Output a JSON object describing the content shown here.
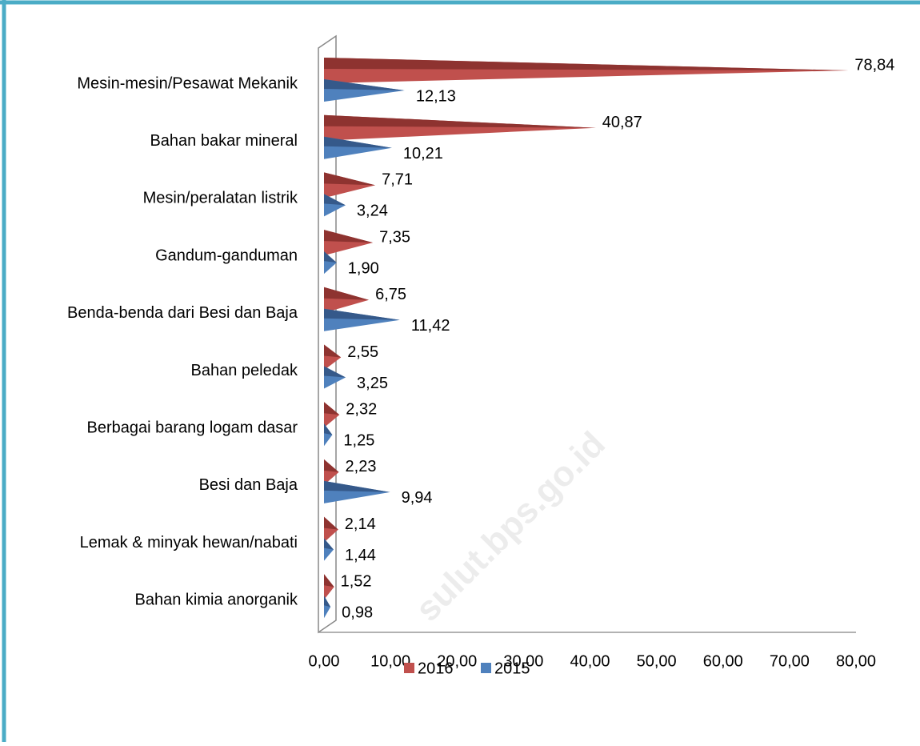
{
  "chart_data": {
    "type": "bar",
    "orientation": "horizontal",
    "style": "3d-cone",
    "categories": [
      "Mesin-mesin/Pesawat Mekanik",
      "Bahan bakar mineral",
      "Mesin/peralatan listrik",
      "Gandum-ganduman",
      "Benda-benda dari Besi dan Baja",
      "Bahan peledak",
      "Berbagai barang logam dasar",
      "Besi dan Baja",
      "Lemak & minyak hewan/nabati",
      "Bahan kimia anorganik"
    ],
    "series": [
      {
        "name": "2016",
        "color": "#c0504d",
        "values": [
          78.84,
          40.87,
          7.71,
          7.35,
          6.75,
          2.55,
          2.32,
          2.23,
          2.14,
          1.52
        ],
        "value_labels": [
          "78,84",
          "40,87",
          "7,71",
          "7,35",
          "6,75",
          "2,55",
          "2,32",
          "2,23",
          "2,14",
          "1,52"
        ]
      },
      {
        "name": "2015",
        "color": "#4f81bd",
        "values": [
          12.13,
          10.21,
          3.24,
          1.9,
          11.42,
          3.25,
          1.25,
          9.94,
          1.44,
          0.98
        ],
        "value_labels": [
          "12,13",
          "10,21",
          "3,24",
          "1,90",
          "11,42",
          "3,25",
          "1,25",
          "9,94",
          "1,44",
          "0,98"
        ]
      }
    ],
    "xlim": [
      0,
      80
    ],
    "xticks": [
      {
        "value": 0,
        "label": "0,00"
      },
      {
        "value": 10,
        "label": "10,00"
      },
      {
        "value": 20,
        "label": "20,00"
      },
      {
        "value": 30,
        "label": "30,00"
      },
      {
        "value": 40,
        "label": "40,00"
      },
      {
        "value": 50,
        "label": "50,00"
      },
      {
        "value": 60,
        "label": "60,00"
      },
      {
        "value": 70,
        "label": "70,00"
      },
      {
        "value": 80,
        "label": "80,00"
      }
    ],
    "legend": "bottom",
    "watermark": "sulut.bps.go.id"
  }
}
